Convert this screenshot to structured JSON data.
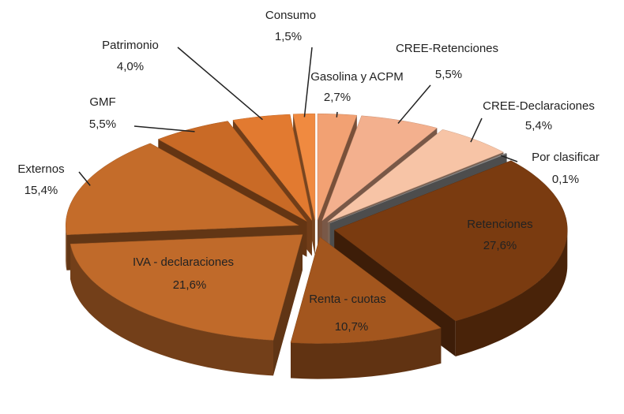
{
  "chart_data": {
    "type": "pie3d",
    "categories": [
      "Gasolina y ACPM",
      "CREE-Retenciones",
      "CREE-Declaraciones",
      "Por clasificar",
      "Retenciones",
      "Renta - cuotas",
      "IVA - declaraciones",
      "Externos",
      "GMF",
      "Patrimonio",
      "Consumo"
    ],
    "values": [
      2.7,
      5.5,
      5.4,
      0.1,
      27.6,
      10.7,
      21.6,
      15.4,
      5.5,
      4.0,
      1.5
    ],
    "value_labels": [
      "2,7%",
      "5,5%",
      "5,4%",
      "0,1%",
      "27,6%",
      "10,7%",
      "21,6%",
      "15,4%",
      "5,5%",
      "4,0%",
      "1,5%"
    ],
    "colors": [
      "#f2a173",
      "#f3b08e",
      "#f7c4a6",
      "#9a9a9a",
      "#7a3b10",
      "#a3561e",
      "#c06a2a",
      "#c46c2a",
      "#c96a26",
      "#e27a30",
      "#f08a40"
    ]
  }
}
